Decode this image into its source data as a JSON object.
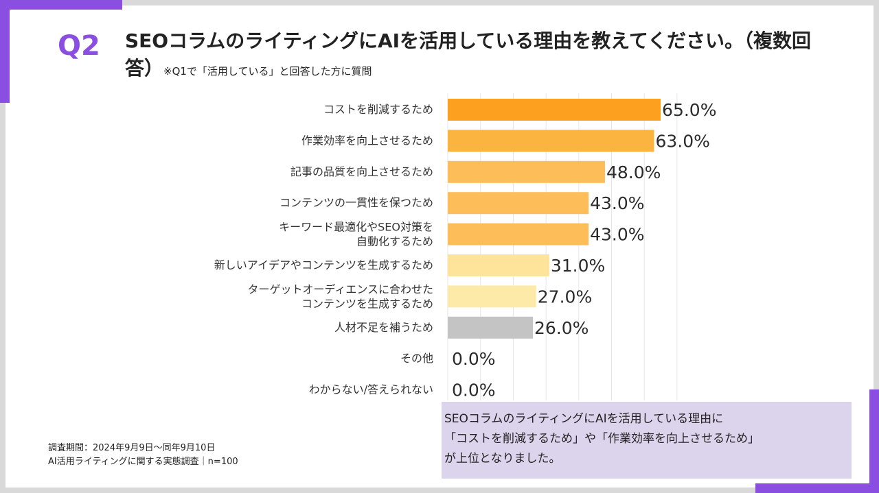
{
  "question_label": "Q2",
  "title": "SEOコラムのライティングにAIを活用している理由を教えてください。（複数回答）",
  "title_note": "※Q1で「活用している」と回答した方に質問",
  "chart_data": {
    "type": "bar",
    "orientation": "horizontal",
    "categories": [
      [
        "コストを削減するため"
      ],
      [
        "作業効率を向上させるため"
      ],
      [
        "記事の品質を向上させるため"
      ],
      [
        "コンテンツの一貫性を保つため"
      ],
      [
        "キーワード最適化やSEO対策を",
        "自動化するため"
      ],
      [
        "新しいアイデアやコンテンツを生成するため"
      ],
      [
        "ターゲットオーディエンスに合わせた",
        "コンテンツを生成するため"
      ],
      [
        "人材不足を補うため"
      ],
      [
        "その他"
      ],
      [
        "わからない/答えられない"
      ]
    ],
    "values": [
      65.0,
      63.0,
      48.0,
      43.0,
      43.0,
      31.0,
      27.0,
      26.0,
      0.0,
      0.0
    ],
    "value_labels": [
      "65.0%",
      "63.0%",
      "48.0%",
      "43.0%",
      "43.0%",
      "31.0%",
      "27.0%",
      "26.0%",
      "0.0%",
      "0.0%"
    ],
    "colors": [
      "#fda01f",
      "#fcb441",
      "#fdbd59",
      "#fdbd59",
      "#fdbd59",
      "#fee39a",
      "#feeaa8",
      "#c4c4c4",
      "#c4c4c4",
      "#c4c4c4"
    ],
    "xlim": [
      0,
      70
    ],
    "grid": true,
    "unit": "%"
  },
  "footnote": {
    "period": "調査期間：2024年9月9日～同年9月10日",
    "survey": "AI活用ライティングに関する実態調査｜n=100"
  },
  "summary": {
    "line1": "SEOコラムのライティングにAIを活用している理由に",
    "line2": "「コストを削減するため」や「作業効率を向上させるため」",
    "line3": "が上位となりました。"
  },
  "colors": {
    "accent": "#8a4fe0",
    "summary_bg": "#dcd3ec"
  }
}
